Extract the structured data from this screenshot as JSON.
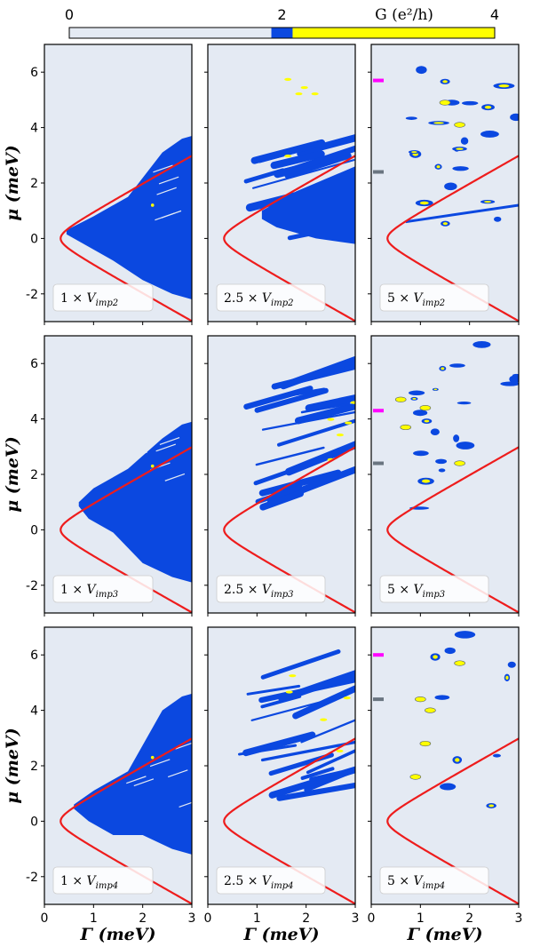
{
  "colorbar": {
    "title": "G (e²/h)",
    "tick_labels": [
      "0",
      "2",
      "4"
    ],
    "range": [
      0,
      4
    ],
    "segments": [
      {
        "from": 0,
        "to": 1.9,
        "color": "#e4eaf3"
      },
      {
        "from": 1.9,
        "to": 2.1,
        "color": "#0b48e0"
      },
      {
        "from": 2.1,
        "to": 4,
        "color": "#ffff00"
      }
    ]
  },
  "axes": {
    "xlabel": "Γ (meV)",
    "ylabel": "μ (meV)",
    "xlim": [
      0,
      3
    ],
    "ylim": [
      -3,
      7
    ],
    "xticks": [
      "0",
      "1",
      "2",
      "3"
    ],
    "yticks": [
      "-2",
      "0",
      "2",
      "4",
      "6"
    ]
  },
  "colors": {
    "background": "#e4eaf3",
    "g2": "#0b48e0",
    "g4": "#ffff00",
    "boundary": "#ee1c1c",
    "marker_magenta": "#ff00ff",
    "marker_gray": "#6a7580"
  },
  "chart_data": {
    "type": "heatmap",
    "rows": 3,
    "cols": 3,
    "boundary_curve": {
      "name": "",
      "description_formula": "Gamma = sqrt(mu^2 + Delta^2)",
      "delta": 0.33,
      "mu_range": [
        -3,
        3
      ]
    },
    "panels": [
      {
        "label_num": "1",
        "label_sub": "imp2",
        "level": 1,
        "markers": []
      },
      {
        "label_num": "2.5",
        "label_sub": "imp2",
        "level": 2,
        "markers": []
      },
      {
        "label_num": "5",
        "label_sub": "imp2",
        "level": 3,
        "markers": [
          {
            "mu": 5.7,
            "color": "magenta"
          },
          {
            "mu": 2.4,
            "color": "gray"
          }
        ]
      },
      {
        "label_num": "1",
        "label_sub": "imp3",
        "level": 1,
        "markers": []
      },
      {
        "label_num": "2.5",
        "label_sub": "imp3",
        "level": 2,
        "markers": []
      },
      {
        "label_num": "5",
        "label_sub": "imp3",
        "level": 3,
        "markers": [
          {
            "mu": 4.3,
            "color": "magenta"
          },
          {
            "mu": 2.4,
            "color": "gray"
          }
        ]
      },
      {
        "label_num": "1",
        "label_sub": "imp4",
        "level": 1,
        "markers": []
      },
      {
        "label_num": "2.5",
        "label_sub": "imp4",
        "level": 2,
        "markers": []
      },
      {
        "label_num": "5",
        "label_sub": "imp4",
        "level": 3,
        "markers": [
          {
            "mu": 6.0,
            "color": "magenta"
          },
          {
            "mu": 4.4,
            "color": "gray"
          }
        ]
      }
    ]
  }
}
